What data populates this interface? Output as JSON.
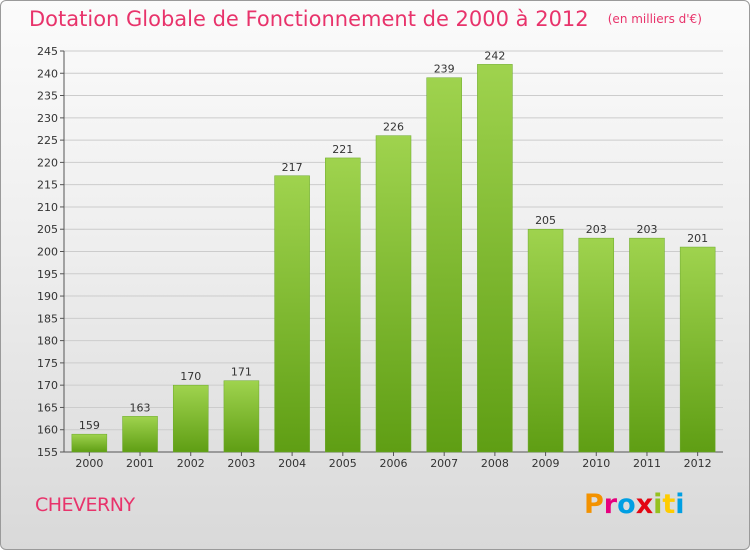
{
  "header": {
    "title": "Dotation Globale de Fonctionnement de 2000 à 2012",
    "unit": "(en milliers d'€)"
  },
  "footer": {
    "commune": "CHEVERNY",
    "logo_text": "Proxiti",
    "logo_colors": [
      "#f39200",
      "#e6007e",
      "#009fe3",
      "#e30613",
      "#95c11f",
      "#ffcc00",
      "#009fe3"
    ]
  },
  "colors": {
    "accent": "#e8336b",
    "bar_top": "#9fd34e",
    "bar_bottom": "#5f9e14",
    "grid": "#cccccc",
    "axis": "#555555"
  },
  "chart_data": {
    "type": "bar",
    "categories": [
      "2000",
      "2001",
      "2002",
      "2003",
      "2004",
      "2005",
      "2006",
      "2007",
      "2008",
      "2009",
      "2010",
      "2011",
      "2012"
    ],
    "values": [
      159,
      163,
      170,
      171,
      217,
      221,
      226,
      239,
      242,
      205,
      203,
      203,
      201
    ],
    "ylim": [
      155,
      245
    ],
    "ytick_step": 5,
    "grid": true,
    "xlabel": "",
    "ylabel": ""
  }
}
